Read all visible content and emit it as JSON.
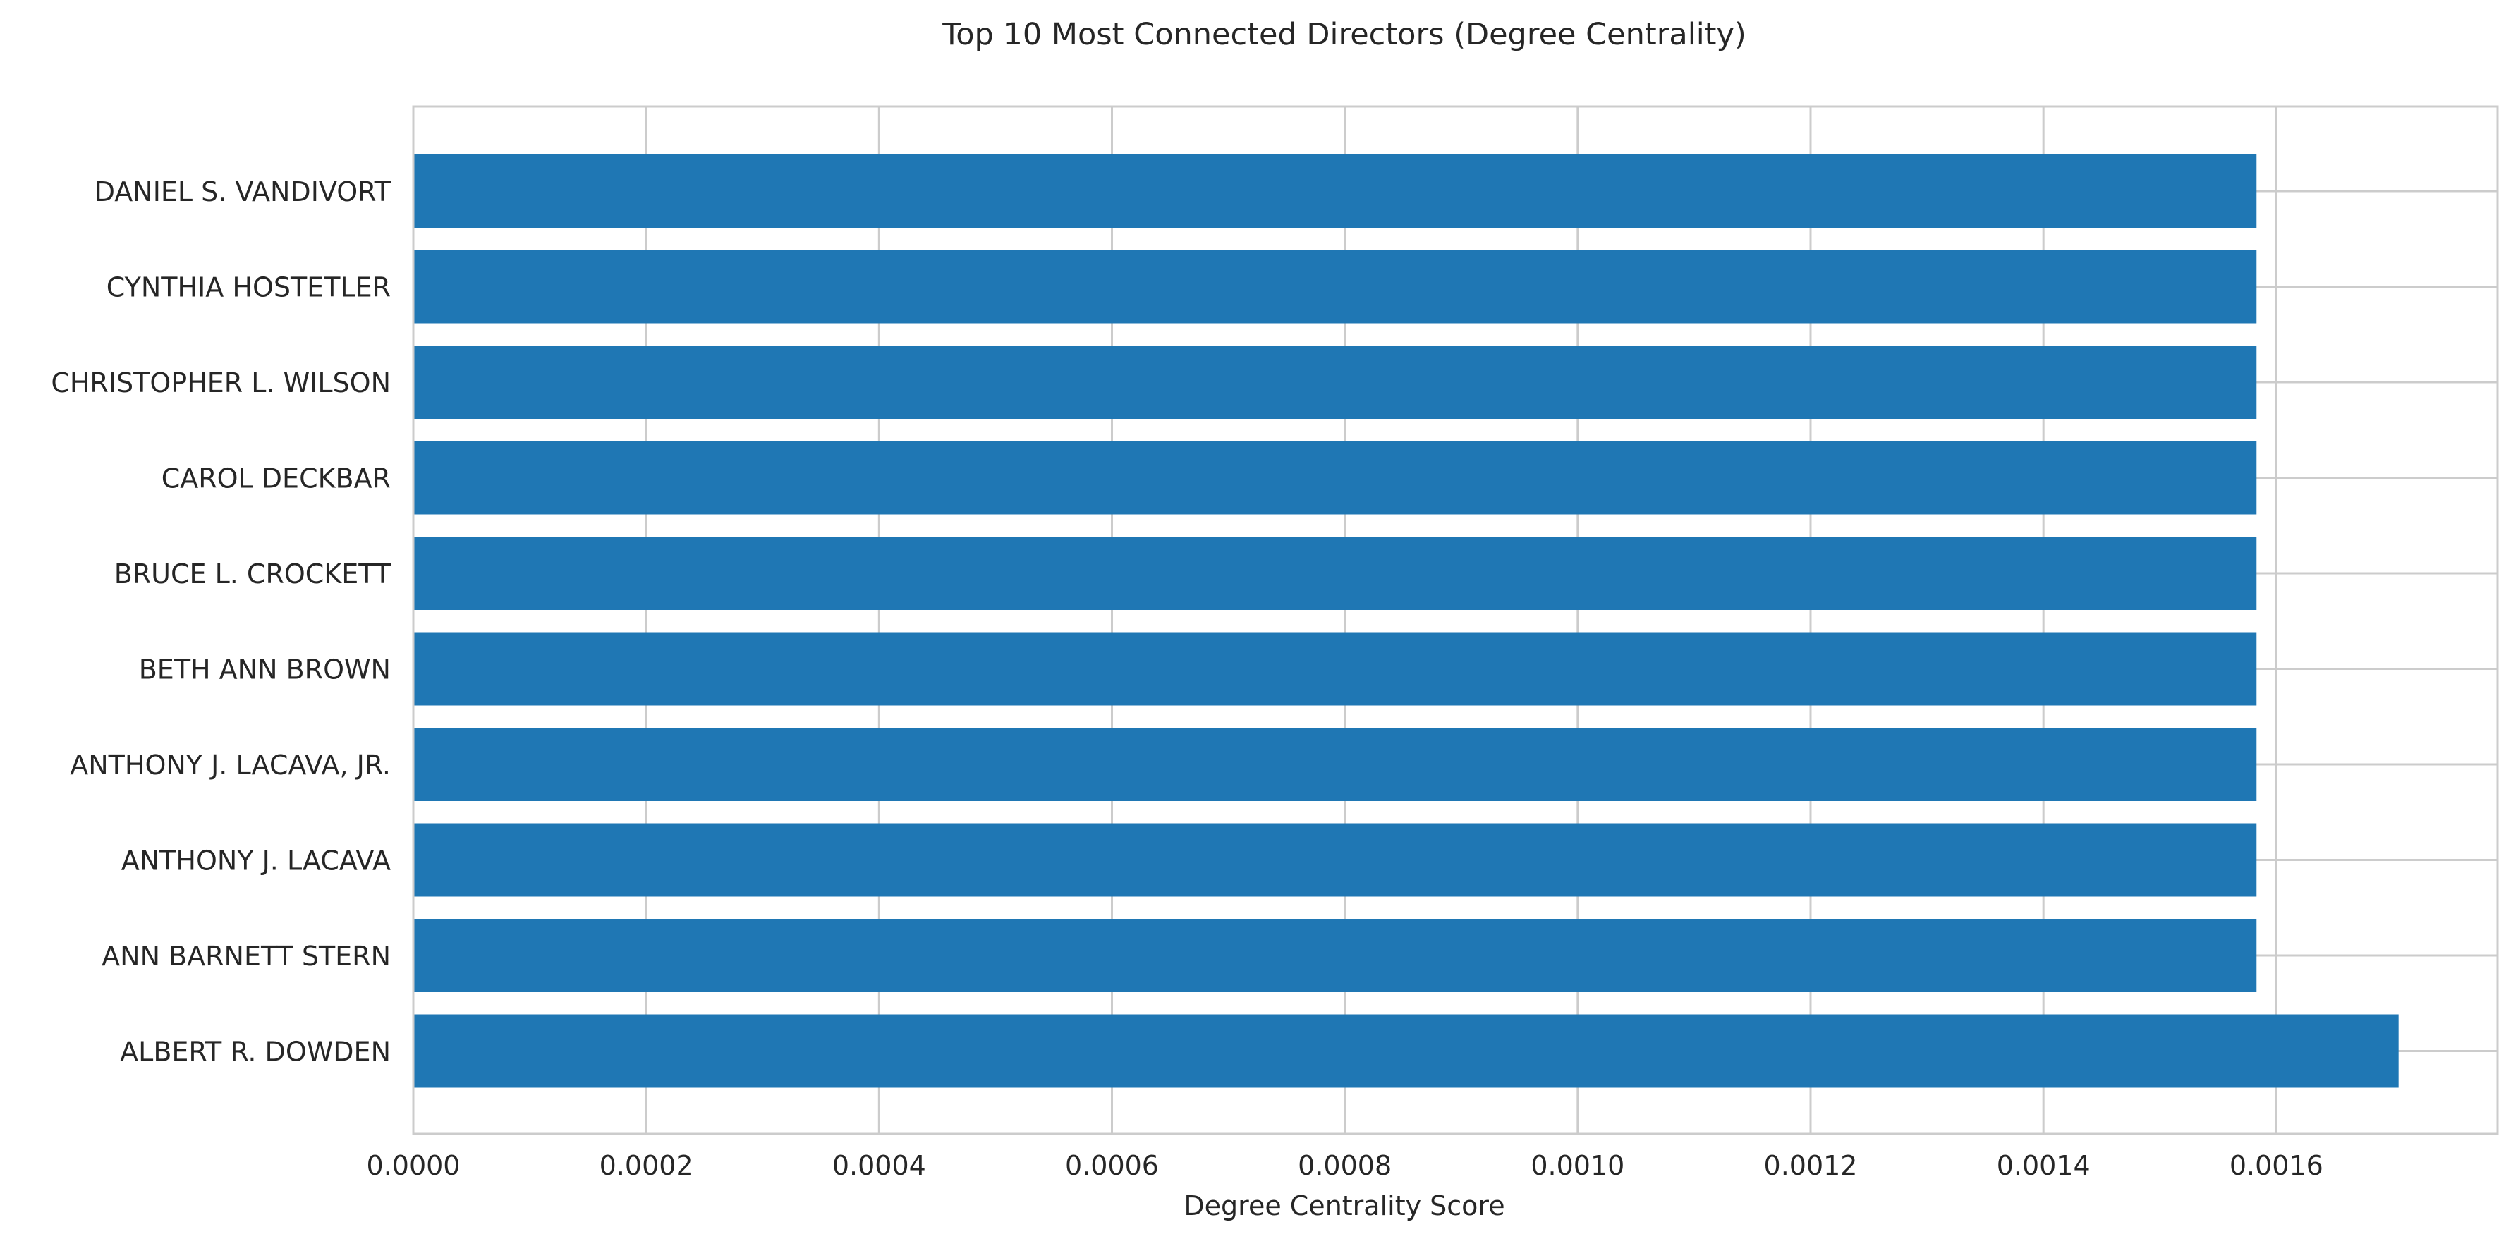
{
  "chart_data": {
    "type": "bar",
    "orientation": "horizontal",
    "title": "Top 10 Most Connected Directors (Degree Centrality)",
    "xlabel": "Degree Centrality Score",
    "ylabel": "",
    "categories": [
      "DANIEL S. VANDIVORT",
      "CYNTHIA HOSTETLER",
      "CHRISTOPHER L. WILSON",
      "CAROL DECKBAR",
      "BRUCE L. CROCKETT",
      "BETH ANN BROWN",
      "ANTHONY J. LACAVA, JR.",
      "ANTHONY J. LACAVA",
      "ANN BARNETT STERN",
      "ALBERT R. DOWDEN"
    ],
    "values": [
      0.001583,
      0.001583,
      0.001583,
      0.001583,
      0.001583,
      0.001583,
      0.001583,
      0.001583,
      0.001583,
      0.001705
    ],
    "xlim": [
      0,
      0.00179
    ],
    "xticks": [
      0.0,
      0.0002,
      0.0004,
      0.0006,
      0.0008,
      0.001,
      0.0012,
      0.0014,
      0.0016
    ],
    "xtick_labels": [
      "0.0000",
      "0.0002",
      "0.0004",
      "0.0006",
      "0.0008",
      "0.0010",
      "0.0012",
      "0.0014",
      "0.0016"
    ],
    "grid": true,
    "legend": "none",
    "bar_color": "#1f77b4",
    "grid_color": "#cccccc",
    "spine_color": "#cccccc"
  }
}
